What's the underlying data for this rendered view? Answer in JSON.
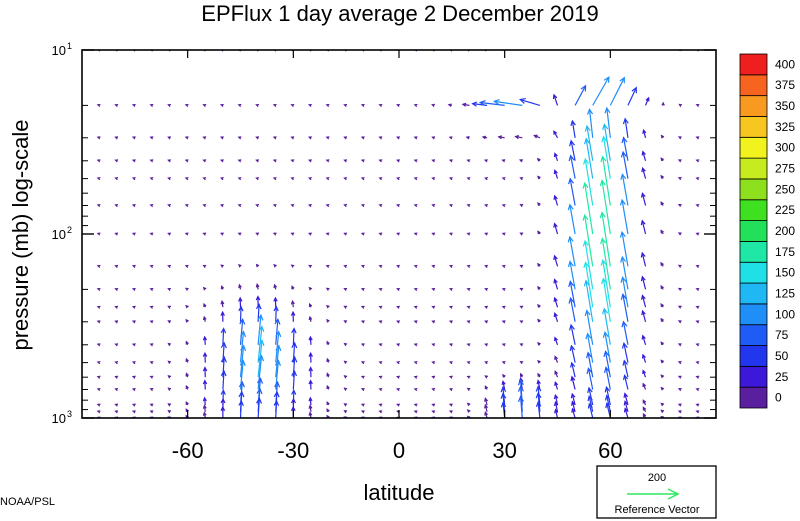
{
  "chart_data": {
    "type": "vector-field",
    "title": "EPFlux  1 day average  2 December 2019",
    "xlabel": "latitude",
    "ylabel": "pressure (mb)  log-scale",
    "x_ticks": [
      {
        "value": -60,
        "label": "-60"
      },
      {
        "value": -30,
        "label": "-30"
      },
      {
        "value": 0,
        "label": "0"
      },
      {
        "value": 30,
        "label": "30"
      },
      {
        "value": 60,
        "label": "60"
      }
    ],
    "y_ticks": [
      {
        "value": 10,
        "base": "10",
        "exp": "1"
      },
      {
        "value": 100,
        "base": "10",
        "exp": "2"
      },
      {
        "value": 1000,
        "base": "10",
        "exp": "3"
      }
    ],
    "xlim": [
      -90,
      90
    ],
    "ylim": [
      1000,
      10
    ],
    "y_scale": "log",
    "colorbar": {
      "levels": [
        0,
        25,
        50,
        75,
        100,
        125,
        150,
        175,
        200,
        225,
        250,
        275,
        300,
        325,
        350,
        375,
        400
      ],
      "labels": [
        "0",
        "25",
        "50",
        "75",
        "100",
        "125",
        "150",
        "175",
        "200",
        "225",
        "250",
        "275",
        "300",
        "325",
        "350",
        "375",
        "400"
      ],
      "colors": [
        "#5a1f9e",
        "#3c18d8",
        "#2236ee",
        "#1f5cf6",
        "#1f8ef7",
        "#1fb8f5",
        "#1fe0e6",
        "#1fe8a6",
        "#22e05a",
        "#3fe020",
        "#8ee01f",
        "#c6ec1f",
        "#f2f21f",
        "#f7c61f",
        "#f79a1f",
        "#f7641f",
        "#f01f1f"
      ]
    },
    "reference_vector": {
      "value_label": "200",
      "label": "Reference Vector",
      "value": 200
    },
    "credit": "NOAA/PSL",
    "grid": false
  }
}
